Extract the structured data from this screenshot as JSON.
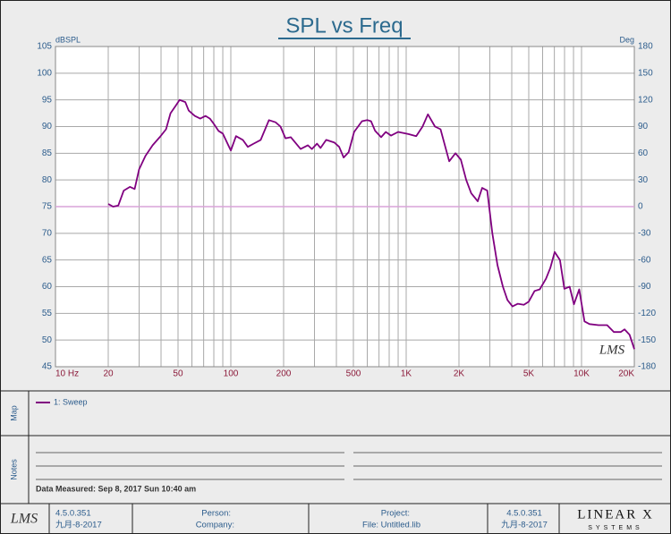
{
  "chart_data": {
    "type": "line",
    "title": "SPL vs Freq",
    "y_label": "dBSPL",
    "y2_label": "Deg",
    "watermark": "LMS",
    "xscale": "log",
    "xlim": [
      10,
      20000
    ],
    "ylim": [
      45,
      105
    ],
    "y2lim": [
      -180,
      180
    ],
    "xticks": [
      {
        "value": 10,
        "label": "10  Hz"
      },
      20,
      50,
      100,
      200,
      500,
      {
        "value": 1000,
        "label": "1K"
      },
      {
        "value": 2000,
        "label": "2K"
      },
      {
        "value": 5000,
        "label": "5K"
      },
      {
        "value": 10000,
        "label": "10K"
      },
      {
        "value": 20000,
        "label": "20K"
      }
    ],
    "xgrid": [
      10,
      20,
      30,
      40,
      50,
      60,
      70,
      80,
      90,
      100,
      200,
      300,
      400,
      500,
      600,
      700,
      800,
      900,
      1000,
      2000,
      3000,
      4000,
      5000,
      6000,
      7000,
      8000,
      9000,
      10000,
      20000
    ],
    "yticks": [
      45,
      50,
      55,
      60,
      65,
      70,
      75,
      80,
      85,
      90,
      95,
      100,
      105
    ],
    "y2ticks": [
      -180,
      -150,
      -120,
      -90,
      -60,
      -30,
      0,
      30,
      60,
      90,
      120,
      150,
      180
    ],
    "grid": true,
    "reference_line": {
      "axis": "y2",
      "value": 0,
      "color": "#d9a3d9"
    },
    "x": [
      20,
      21.3,
      22.8,
      24.5,
      26.6,
      28.3,
      30,
      32.6,
      35.8,
      39.3,
      42.7,
      45.3,
      48.7,
      51,
      55,
      57.5,
      62.3,
      66.9,
      71.8,
      76,
      80,
      85,
      90,
      100,
      107,
      117,
      125,
      135,
      148,
      165,
      180,
      192,
      205,
      220,
      250,
      275,
      290,
      310,
      325,
      350,
      390,
      415,
      440,
      470,
      505,
      560,
      600,
      630,
      665,
      720,
      765,
      820,
      900,
      1030,
      1140,
      1240,
      1330,
      1460,
      1570,
      1760,
      1910,
      2050,
      2200,
      2350,
      2560,
      2710,
      2900,
      3100,
      3320,
      3560,
      3780,
      4040,
      4330,
      4690,
      5000,
      5400,
      5780,
      6270,
      6640,
      7030,
      7530,
      7980,
      8550,
      9050,
      9700,
      10400,
      11100,
      12500,
      14000,
      15300,
      16700,
      17600,
      18800,
      20000
    ],
    "series": [
      {
        "name": "1: Sweep",
        "color": "#800080",
        "values": [
          75.5,
          75,
          75.2,
          78,
          78.7,
          78.3,
          82,
          84.5,
          86.5,
          88,
          89.5,
          92.5,
          94,
          95,
          94.6,
          93,
          92,
          91.5,
          92,
          91.5,
          90.5,
          89.2,
          88.7,
          85.5,
          88.2,
          87.5,
          86.2,
          86.8,
          87.5,
          91.2,
          90.8,
          90,
          87.8,
          88,
          85.8,
          86.5,
          85.8,
          86.8,
          86,
          87.5,
          87,
          86.2,
          84.2,
          85.2,
          89,
          91,
          91.2,
          91,
          89.2,
          88,
          89,
          88.3,
          89,
          88.6,
          88.2,
          90,
          92.3,
          90,
          89.5,
          83.5,
          85,
          83.8,
          80,
          77.5,
          76,
          78.5,
          78,
          70,
          64,
          60,
          57.5,
          56.3,
          56.8,
          56.6,
          57.2,
          59.2,
          59.5,
          61.5,
          63.5,
          66.5,
          65,
          59.6,
          60,
          56.7,
          59.5,
          53.5,
          53,
          52.8,
          52.8,
          51.5,
          51.5,
          52,
          51,
          48.3
        ]
      }
    ]
  },
  "map": {
    "label": "Map"
  },
  "notes": {
    "label": "Notes",
    "text": "Data Measured: Sep 8, 2017 Sun 10:40 am"
  },
  "footer": {
    "logo": "LMS",
    "version_left": "4.5.0.351",
    "date_left": "九月-8-2017",
    "person": "Person:",
    "company": "Company:",
    "project": "Project:",
    "file": "File: Untitled.lib",
    "version_right": "4.5.0.351",
    "date_right": "九月-8-2017",
    "brand": "LINEAR X",
    "brand_sub": "SYSTEMS"
  }
}
